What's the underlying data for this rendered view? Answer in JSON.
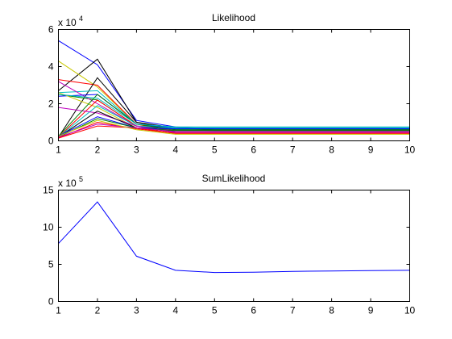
{
  "chart_data": [
    {
      "type": "line",
      "title": "Likelihood",
      "xlabel": "",
      "ylabel": "",
      "xlim": [
        1,
        10
      ],
      "ylim": [
        0,
        60000
      ],
      "x_ticks": [
        "1",
        "2",
        "3",
        "4",
        "5",
        "6",
        "7",
        "8",
        "9",
        "10"
      ],
      "y_ticks": [
        "0",
        "2",
        "4",
        "6"
      ],
      "y_multiplier_base": "x 10",
      "y_multiplier_exp": "4",
      "grid": false,
      "x": [
        1,
        2,
        3,
        4,
        5,
        6,
        7,
        8,
        9,
        10
      ],
      "series": [
        {
          "color": "#0000ff",
          "values": [
            54000,
            41000,
            11000,
            7500,
            6500,
            6500,
            6500,
            6500,
            6500,
            6500
          ]
        },
        {
          "color": "#000000",
          "values": [
            27000,
            44000,
            10000,
            7000,
            6000,
            6000,
            6000,
            6000,
            6000,
            6000
          ]
        },
        {
          "color": "#c8c800",
          "values": [
            43000,
            29000,
            9000,
            5000,
            5000,
            5000,
            5000,
            5000,
            5000,
            5000
          ]
        },
        {
          "color": "#ff0000",
          "values": [
            33000,
            30000,
            9000,
            5000,
            5000,
            5000,
            5000,
            5000,
            5000,
            5000
          ]
        },
        {
          "color": "#000000",
          "values": [
            2000,
            34000,
            10000,
            6000,
            5500,
            5500,
            5500,
            5500,
            5500,
            5500
          ]
        },
        {
          "color": "#00bfbf",
          "values": [
            26000,
            27000,
            9000,
            6500,
            6500,
            6500,
            6500,
            6500,
            6500,
            6500
          ]
        },
        {
          "color": "#008000",
          "values": [
            25000,
            22000,
            8000,
            6000,
            6000,
            6000,
            6000,
            6000,
            6000,
            6000
          ]
        },
        {
          "color": "#bf00bf",
          "values": [
            32000,
            20000,
            8000,
            5500,
            5500,
            5500,
            5500,
            5500,
            5500,
            5500
          ]
        },
        {
          "color": "#0000ff",
          "values": [
            24000,
            25000,
            9000,
            7000,
            7000,
            7000,
            7000,
            7000,
            7000,
            7000
          ]
        },
        {
          "color": "#c8c800",
          "values": [
            26000,
            18000,
            7000,
            5000,
            5000,
            5000,
            5000,
            5000,
            5000,
            4000
          ]
        },
        {
          "color": "#ff0000",
          "values": [
            2000,
            22000,
            8000,
            4500,
            4500,
            4500,
            4500,
            4500,
            4500,
            4500
          ]
        },
        {
          "color": "#00bfbf",
          "values": [
            2000,
            19000,
            8000,
            7000,
            7000,
            7000,
            7000,
            7000,
            7000,
            7000
          ]
        },
        {
          "color": "#bf00bf",
          "values": [
            18000,
            15000,
            8000,
            4500,
            4500,
            4500,
            4500,
            4500,
            4500,
            4500
          ]
        },
        {
          "color": "#008000",
          "values": [
            2500,
            25000,
            9000,
            6000,
            6000,
            6000,
            6000,
            6000,
            6000,
            6000
          ]
        },
        {
          "color": "#000000",
          "values": [
            2000,
            16000,
            7000,
            5000,
            5000,
            5000,
            5000,
            5000,
            5000,
            5000
          ]
        },
        {
          "color": "#0000ff",
          "values": [
            2500,
            13000,
            7000,
            6500,
            6500,
            6500,
            6500,
            6500,
            6500,
            6500
          ]
        },
        {
          "color": "#ff0000",
          "values": [
            1500,
            10000,
            6500,
            4000,
            4000,
            4000,
            4000,
            4000,
            4000,
            4000
          ]
        },
        {
          "color": "#008000",
          "values": [
            2000,
            12000,
            7000,
            5500,
            5500,
            5500,
            5500,
            5500,
            5500,
            5500
          ]
        },
        {
          "color": "#00bfbf",
          "values": [
            25000,
            23000,
            9000,
            7500,
            7500,
            7500,
            7500,
            7500,
            7500,
            7500
          ]
        },
        {
          "color": "#ff0000",
          "values": [
            1500,
            8000,
            7000,
            4000,
            4000,
            4000,
            4000,
            4000,
            4000,
            4000
          ]
        },
        {
          "color": "#bf00bf",
          "values": [
            2000,
            9000,
            7000,
            5000,
            5000,
            5000,
            5000,
            5000,
            5000,
            5000
          ]
        },
        {
          "color": "#c8c800",
          "values": [
            2500,
            11000,
            6000,
            3500,
            3500,
            3500,
            3500,
            3500,
            3500,
            3500
          ]
        }
      ]
    },
    {
      "type": "line",
      "title": "SumLikelihood",
      "xlabel": "",
      "ylabel": "",
      "xlim": [
        1,
        10
      ],
      "ylim": [
        0,
        1500000
      ],
      "x_ticks": [
        "1",
        "2",
        "3",
        "4",
        "5",
        "6",
        "7",
        "8",
        "9",
        "10"
      ],
      "y_ticks": [
        "0",
        "5",
        "10",
        "15"
      ],
      "y_multiplier_base": "x 10",
      "y_multiplier_exp": "5",
      "grid": false,
      "x": [
        1,
        2,
        3,
        4,
        5,
        6,
        7,
        8,
        9,
        10
      ],
      "series": [
        {
          "color": "#0000ff",
          "values": [
            780000,
            1340000,
            610000,
            420000,
            390000,
            395000,
            405000,
            410000,
            415000,
            420000
          ]
        }
      ]
    }
  ]
}
